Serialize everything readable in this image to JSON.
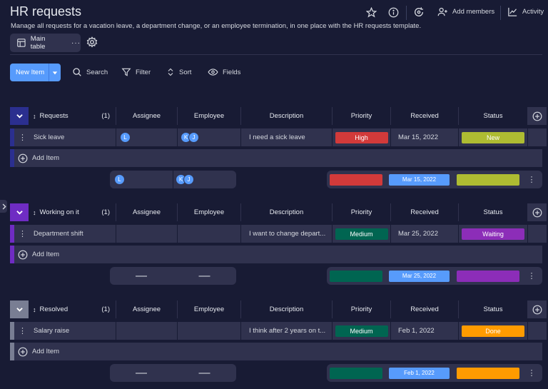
{
  "header": {
    "title": "HR requests",
    "subtitle": "Manage all requests for a vacation leave, a department change, or an employee termination, in one place with the HR requests template.",
    "add_members_label": "Add members",
    "activity_label": "Activity"
  },
  "views": {
    "main_table_label": "Main table"
  },
  "toolbar": {
    "new_item_label": "New Item",
    "search_label": "Search",
    "filter_label": "Filter",
    "sort_label": "Sort",
    "fields_label": "Fields"
  },
  "columns": {
    "assignee": "Assignee",
    "employee": "Employee",
    "description": "Description",
    "priority": "Priority",
    "received": "Received",
    "status": "Status"
  },
  "colors": {
    "group_requests": "#2b2f8f",
    "group_working": "#6f2cc3",
    "group_resolved": "#797e93",
    "priority_high": "#d23a3a",
    "priority_medium": "#006551",
    "status_new": "#aebc32",
    "status_waiting": "#8c2db8",
    "status_done": "#ff9b00",
    "received_pill": "#579bfc"
  },
  "groups": [
    {
      "name": "Requests",
      "count": "(1)",
      "item": {
        "name": "Sick leave",
        "assignee": [
          "L"
        ],
        "employee": [
          "K",
          "J"
        ],
        "description": "I need a sick leave",
        "priority": "High",
        "received": "Mar 15, 2022",
        "status": "New"
      },
      "add_item_label": "Add Item",
      "summary": {
        "assignee": [
          "L"
        ],
        "employee": [
          "K",
          "J"
        ],
        "received": "Mar 15, 2022"
      }
    },
    {
      "name": "Working on it",
      "count": "(1)",
      "item": {
        "name": "Department shift",
        "assignee": [],
        "employee": [],
        "description": "I want to change depart...",
        "priority": "Medium",
        "received": "Mar 25, 2022",
        "status": "Waiting"
      },
      "add_item_label": "Add Item",
      "summary": {
        "assignee_text": "—",
        "employee_text": "—",
        "received": "Mar 25, 2022"
      }
    },
    {
      "name": "Resolved",
      "count": "(1)",
      "item": {
        "name": "Salary raise",
        "assignee": [],
        "employee": [],
        "description": "I think after 2 years on t...",
        "priority": "Medium",
        "received": "Feb 1, 2022",
        "status": "Done"
      },
      "add_item_label": "Add Item",
      "summary": {
        "assignee_text": "—",
        "employee_text": "—",
        "received": "Feb 1, 2022"
      }
    }
  ]
}
